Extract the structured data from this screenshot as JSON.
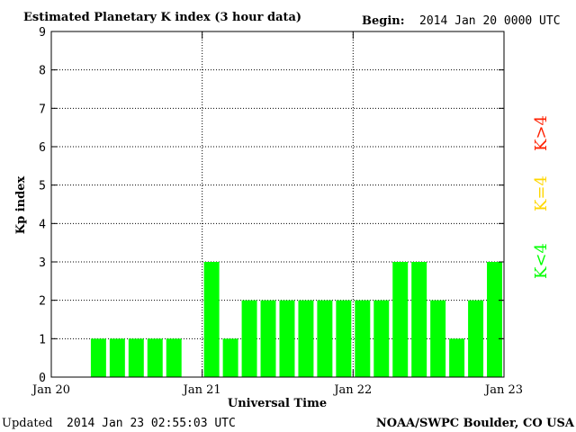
{
  "header": {
    "title": "Estimated Planetary K index (3 hour data)",
    "begin_label": "Begin:",
    "begin_value": "2014 Jan 20 0000 UTC"
  },
  "footer": {
    "updated_label": "Updated",
    "updated_value": "2014 Jan 23 02:55:03 UTC",
    "source": "NOAA/SWPC Boulder, CO USA"
  },
  "legend": {
    "low": "K<4",
    "mid": "K=4",
    "high": "K>4"
  },
  "colors": {
    "low": "#00ff00",
    "mid": "#ffd700",
    "high": "#ff2000",
    "axis": "#000000"
  },
  "chart_data": {
    "type": "bar",
    "title": "Estimated Planetary K index (3 hour data)",
    "xlabel": "Universal Time",
    "ylabel": "Kp index",
    "ylim": [
      0,
      9
    ],
    "yticks": [
      0,
      1,
      2,
      3,
      4,
      5,
      6,
      7,
      8,
      9
    ],
    "xticks": [
      "Jan 20",
      "Jan 21",
      "Jan 22",
      "Jan 23"
    ],
    "grid": true,
    "values": [
      null,
      null,
      1,
      1,
      1,
      1,
      1,
      null,
      3,
      1,
      2,
      2,
      2,
      2,
      2,
      2,
      2,
      2,
      3,
      3,
      2,
      1,
      2,
      3
    ]
  }
}
